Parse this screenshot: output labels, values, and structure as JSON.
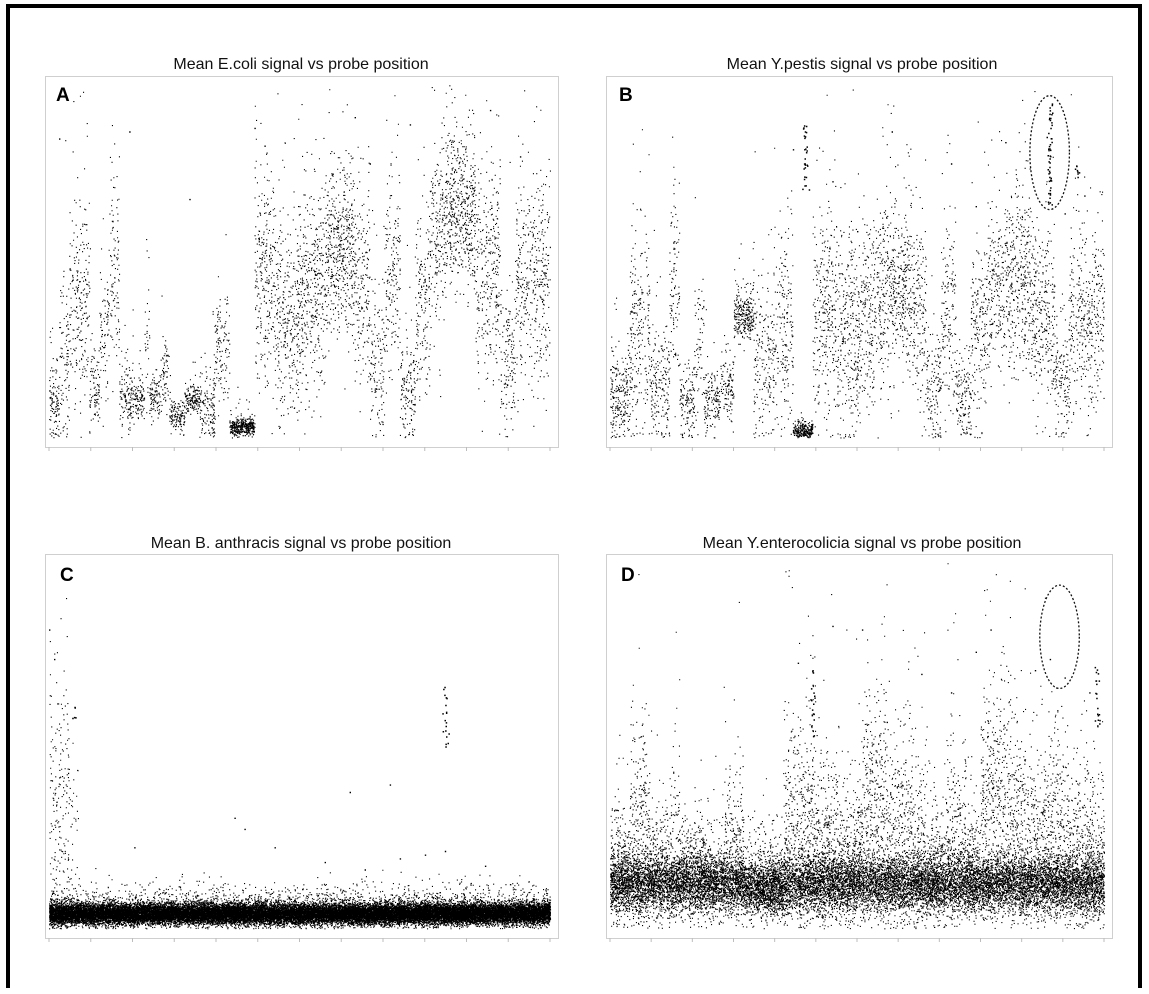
{
  "chart_data": [
    {
      "id": "A",
      "type": "scatter",
      "panel_label": "A",
      "title": "Mean E.coli signal vs probe position",
      "xlabel": "",
      "ylabel": "",
      "xlim": [
        0,
        100
      ],
      "ylim": [
        0,
        100
      ],
      "grid": false,
      "ticks_bottom": 12,
      "point_color": "#000000",
      "segments": [
        [
          0,
          2,
          11,
          6,
          1.0
        ],
        [
          2,
          4,
          22,
          10,
          0.8
        ],
        [
          4,
          8,
          40,
          14,
          1.0
        ],
        [
          8,
          10,
          14,
          6,
          0.8
        ],
        [
          10,
          12,
          32,
          9,
          0.7
        ],
        [
          12,
          14,
          48,
          16,
          0.9
        ],
        [
          14,
          17,
          12,
          5,
          0.8
        ],
        [
          17,
          19,
          12,
          3,
          0.8
        ],
        [
          19,
          20,
          30,
          8,
          0.5
        ],
        [
          20,
          22,
          12,
          3,
          0.8
        ],
        [
          22,
          24,
          19,
          6,
          0.6
        ],
        [
          24,
          27,
          7,
          2,
          0.8
        ],
        [
          27,
          30,
          12,
          2,
          0.9
        ],
        [
          30,
          33,
          9,
          5,
          0.8
        ],
        [
          33,
          36,
          25,
          8,
          0.7
        ],
        [
          36,
          41,
          4,
          1.3,
          1.4
        ],
        [
          41,
          45,
          46,
          16,
          1.2
        ],
        [
          45,
          50,
          34,
          14,
          1.2
        ],
        [
          50,
          55,
          43,
          15,
          1.3
        ],
        [
          55,
          61,
          53,
          12,
          1.5
        ],
        [
          61,
          64,
          43,
          15,
          1.0
        ],
        [
          64,
          67,
          21,
          11,
          0.8
        ],
        [
          67,
          70,
          48,
          14,
          1.0
        ],
        [
          70,
          73,
          14,
          7,
          0.8
        ],
        [
          73,
          76,
          40,
          13,
          1.0
        ],
        [
          76,
          79,
          58,
          13,
          1.1
        ],
        [
          79,
          85,
          66,
          11,
          1.5
        ],
        [
          85,
          90,
          47,
          14,
          1.1
        ],
        [
          90,
          93,
          22,
          9,
          0.8
        ],
        [
          93,
          96,
          44,
          14,
          1.0
        ],
        [
          96,
          100,
          46,
          16,
          1.1
        ]
      ],
      "sparse": [
        [
          2,
          85
        ],
        [
          16,
          87
        ],
        [
          28,
          68
        ],
        [
          41,
          88
        ],
        [
          43,
          83
        ],
        [
          61,
          91
        ],
        [
          64,
          78
        ],
        [
          72,
          89
        ],
        [
          88,
          93
        ],
        [
          94,
          80
        ]
      ],
      "spikes": []
    },
    {
      "id": "B",
      "type": "scatter",
      "panel_label": "B",
      "title": "Mean Y.pestis signal vs probe position",
      "xlabel": "",
      "ylabel": "",
      "xlim": [
        0,
        100
      ],
      "ylim": [
        0,
        100
      ],
      "grid": false,
      "ticks_bottom": 12,
      "point_color": "#000000",
      "circle": {
        "cx": 89,
        "cy": 81,
        "rx": 4,
        "ry": 16
      },
      "segments": [
        [
          0,
          4,
          12,
          7,
          1.0
        ],
        [
          4,
          8,
          30,
          15,
          1.0
        ],
        [
          8,
          12,
          14,
          8,
          0.8
        ],
        [
          12,
          14,
          42,
          15,
          0.9
        ],
        [
          14,
          17,
          11,
          5,
          0.8
        ],
        [
          17,
          19,
          26,
          10,
          0.6
        ],
        [
          19,
          22,
          11,
          4,
          0.8
        ],
        [
          22,
          25,
          15,
          5,
          0.7
        ],
        [
          25,
          29,
          35,
          4,
          1.2
        ],
        [
          29,
          33,
          22,
          11,
          0.8
        ],
        [
          33,
          37,
          31,
          14,
          0.9
        ],
        [
          37,
          41,
          3,
          1.2,
          1.2
        ],
        [
          41,
          46,
          36,
          15,
          1.1
        ],
        [
          46,
          51,
          29,
          13,
          1.2
        ],
        [
          51,
          55,
          36,
          14,
          1.1
        ],
        [
          55,
          61,
          42,
          12,
          1.3
        ],
        [
          61,
          64,
          34,
          14,
          1.0
        ],
        [
          64,
          67,
          14,
          8,
          0.8
        ],
        [
          67,
          70,
          34,
          13,
          0.9
        ],
        [
          70,
          73,
          12,
          7,
          0.8
        ],
        [
          73,
          76,
          32,
          12,
          1.0
        ],
        [
          76,
          80,
          42,
          11,
          1.0
        ],
        [
          80,
          85,
          46,
          13,
          1.3
        ],
        [
          85,
          90,
          36,
          13,
          1.1
        ],
        [
          90,
          93,
          17,
          8,
          0.8
        ],
        [
          93,
          96,
          36,
          12,
          1.0
        ],
        [
          96,
          100,
          34,
          14,
          1.0
        ]
      ],
      "sparse": [
        [
          37,
          82
        ],
        [
          45,
          73
        ],
        [
          50,
          59
        ],
        [
          57,
          87
        ],
        [
          69,
          78
        ],
        [
          74,
          66
        ],
        [
          80,
          84
        ],
        [
          92,
          64
        ],
        [
          96,
          69
        ]
      ],
      "spikes": [
        [
          39.5,
          70,
          89,
          0.5
        ],
        [
          89,
          66,
          95,
          0.6
        ],
        [
          94.5,
          69,
          78,
          0.3
        ]
      ]
    },
    {
      "id": "C",
      "type": "scatter",
      "panel_label": "C",
      "title": "Mean B. anthracis signal vs probe position",
      "xlabel": "",
      "ylabel": "",
      "xlim": [
        0,
        100
      ],
      "ylim": [
        0,
        100
      ],
      "grid": false,
      "ticks_bottom": 12,
      "point_color": "#000000",
      "segments": [
        [
          0,
          100,
          5,
          1.4,
          6.0
        ],
        [
          0,
          4,
          32,
          20,
          0.9
        ],
        [
          4,
          6,
          26,
          12,
          0.3
        ]
      ],
      "sparse": [
        [
          0,
          82
        ],
        [
          1,
          74
        ],
        [
          17,
          23
        ],
        [
          37,
          31
        ],
        [
          39,
          28
        ],
        [
          45,
          23
        ],
        [
          55,
          19
        ],
        [
          60,
          38
        ],
        [
          63,
          17
        ],
        [
          68,
          40
        ],
        [
          70,
          20
        ],
        [
          75,
          21
        ],
        [
          79,
          22
        ],
        [
          87,
          18
        ],
        [
          92,
          13
        ]
      ],
      "spikes": [
        [
          79,
          50,
          67,
          0.4
        ],
        [
          5,
          58,
          63,
          0.3
        ]
      ]
    },
    {
      "id": "D",
      "type": "scatter",
      "panel_label": "D",
      "title": "Mean Y.enterocolicia signal vs probe position",
      "xlabel": "",
      "ylabel": "",
      "xlim": [
        0,
        100
      ],
      "ylim": [
        0,
        100
      ],
      "grid": false,
      "ticks_bottom": 12,
      "point_color": "#000000",
      "circle": {
        "cx": 91,
        "cy": 80,
        "rx": 4,
        "ry": 14
      },
      "segments": [
        [
          0,
          100,
          13,
          4,
          3.0
        ],
        [
          0,
          4,
          19,
          8,
          0.8
        ],
        [
          4,
          8,
          32,
          14,
          1.0
        ],
        [
          8,
          12,
          20,
          8,
          0.7
        ],
        [
          12,
          14,
          28,
          10,
          0.6
        ],
        [
          14,
          20,
          18,
          6,
          0.8
        ],
        [
          20,
          23,
          14,
          4,
          0.6
        ],
        [
          23,
          27,
          25,
          10,
          0.8
        ],
        [
          27,
          30,
          10,
          3,
          0.6
        ],
        [
          30,
          35,
          9,
          3,
          0.8
        ],
        [
          35,
          41,
          33,
          14,
          1.0
        ],
        [
          41,
          46,
          28,
          11,
          0.9
        ],
        [
          46,
          51,
          23,
          10,
          0.9
        ],
        [
          51,
          56,
          38,
          14,
          1.1
        ],
        [
          56,
          61,
          30,
          13,
          0.9
        ],
        [
          61,
          64,
          26,
          12,
          0.8
        ],
        [
          64,
          68,
          18,
          8,
          0.7
        ],
        [
          68,
          72,
          29,
          12,
          0.8
        ],
        [
          72,
          75,
          20,
          8,
          0.7
        ],
        [
          75,
          81,
          39,
          14,
          1.1
        ],
        [
          81,
          84,
          33,
          12,
          0.9
        ],
        [
          84,
          88,
          25,
          11,
          0.8
        ],
        [
          88,
          92,
          31,
          13,
          0.9
        ],
        [
          92,
          96,
          26,
          12,
          0.8
        ],
        [
          96,
          100,
          24,
          12,
          0.8
        ]
      ],
      "sparse": [
        [
          38,
          73
        ],
        [
          41,
          67
        ],
        [
          45,
          83
        ],
        [
          51,
          82
        ],
        [
          56,
          57
        ],
        [
          63,
          70
        ],
        [
          69,
          65
        ],
        [
          74,
          76
        ],
        [
          77,
          82
        ],
        [
          86,
          71
        ],
        [
          89,
          74
        ],
        [
          92,
          69
        ],
        [
          97,
          65
        ]
      ],
      "spikes": [
        [
          98.5,
          56,
          73,
          0.4
        ],
        [
          41,
          53,
          71,
          0.35
        ]
      ]
    }
  ]
}
